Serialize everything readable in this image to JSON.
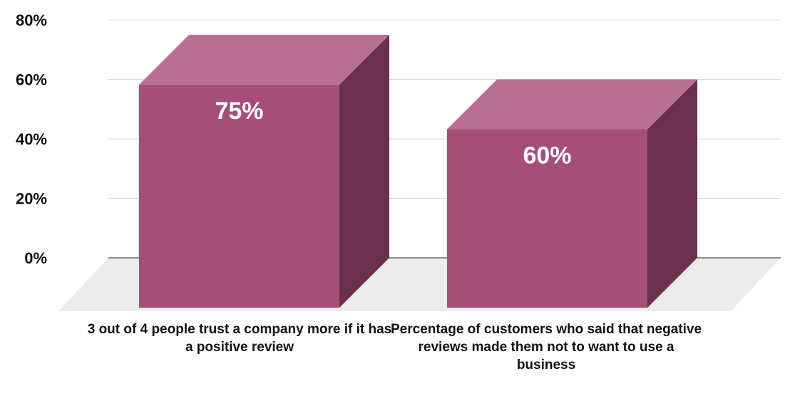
{
  "chart_data": {
    "type": "bar",
    "style": "3d",
    "categories": [
      "3 out of 4 people trust a company more if it has a positive review",
      "Percentage of customers who said that negative reviews made them not to want to use a business"
    ],
    "values": [
      75,
      60
    ],
    "data_labels": [
      "75%",
      "60%"
    ],
    "ylim": [
      0,
      80
    ],
    "yticks": [
      0,
      20,
      40,
      60,
      80
    ],
    "ytick_labels": [
      "0%",
      "20%",
      "40%",
      "60%",
      "80%"
    ],
    "grid": true,
    "legend": "none",
    "colors": {
      "front": "#a54e78",
      "top": "#b87093",
      "side": "#6b3050",
      "floor": "#ececec",
      "grid": "#d9d9d9",
      "baseline": "#222222"
    }
  }
}
